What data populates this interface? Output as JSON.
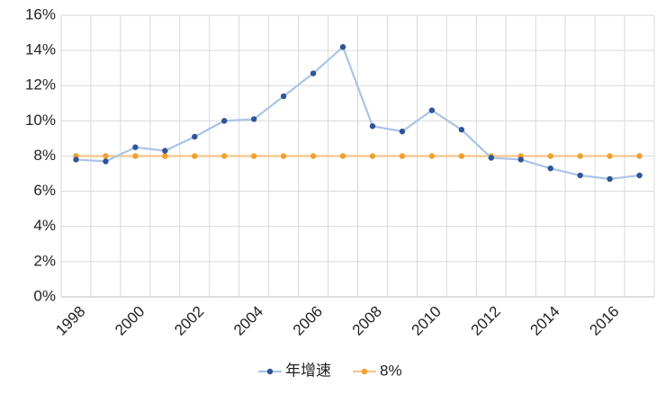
{
  "chart_data": {
    "type": "line",
    "categories": [
      "1998",
      null,
      "2000",
      null,
      "2002",
      null,
      "2004",
      null,
      "2006",
      null,
      "2008",
      null,
      "2010",
      null,
      "2012",
      null,
      "2014",
      null,
      "2016",
      null
    ],
    "series": [
      {
        "name": "年增速",
        "color": "#a9c4e6",
        "marker_color": "#2f5597",
        "values": [
          7.8,
          7.7,
          8.5,
          8.3,
          9.1,
          10.0,
          10.1,
          11.4,
          12.7,
          14.2,
          9.7,
          9.4,
          10.6,
          9.5,
          7.9,
          7.8,
          7.3,
          6.9,
          6.7,
          6.9
        ]
      },
      {
        "name": "8%",
        "color": "#f6c58a",
        "marker_color": "#f0a030",
        "values": [
          8,
          8,
          8,
          8,
          8,
          8,
          8,
          8,
          8,
          8,
          8,
          8,
          8,
          8,
          8,
          8,
          8,
          8,
          8,
          8
        ]
      }
    ],
    "ylim": [
      0,
      16
    ],
    "yticks": [
      {
        "value": 0,
        "label": "0%"
      },
      {
        "value": 2,
        "label": "2%"
      },
      {
        "value": 4,
        "label": "4%"
      },
      {
        "value": 6,
        "label": "6%"
      },
      {
        "value": 8,
        "label": "8%"
      },
      {
        "value": 10,
        "label": "10%"
      },
      {
        "value": 12,
        "label": "12%"
      },
      {
        "value": 14,
        "label": "14%"
      },
      {
        "value": 16,
        "label": "16%"
      }
    ],
    "grid": true,
    "legend": "bottom"
  }
}
